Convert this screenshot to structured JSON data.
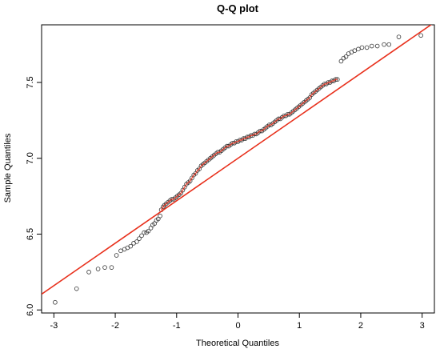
{
  "chart_data": {
    "type": "scatter",
    "title": "Q-Q plot",
    "xlabel": "Theoretical Quantiles",
    "ylabel": "Sample Quantiles",
    "xlim": [
      -3.2,
      3.2
    ],
    "ylim": [
      5.98,
      7.88
    ],
    "x_ticks": [
      -3,
      -2,
      -1,
      0,
      1,
      2,
      3
    ],
    "x_tick_labels": [
      "-3",
      "-2",
      "-1",
      "0",
      "1",
      "2",
      "3"
    ],
    "y_ticks": [
      6.0,
      6.5,
      7.0,
      7.5
    ],
    "y_tick_labels": [
      "6.0",
      "6.5",
      "7.0",
      "7.5"
    ],
    "grid": false,
    "point_color": "#333333",
    "line_color": "#e8301c",
    "reference_line": {
      "slope": 0.28,
      "intercept": 7.0
    },
    "points": [
      [
        -2.98,
        6.05
      ],
      [
        -2.63,
        6.14
      ],
      [
        -2.43,
        6.25
      ],
      [
        -2.28,
        6.27
      ],
      [
        -2.17,
        6.28
      ],
      [
        -2.06,
        6.28
      ],
      [
        -1.98,
        6.36
      ],
      [
        -1.91,
        6.39
      ],
      [
        -1.85,
        6.4
      ],
      [
        -1.8,
        6.41
      ],
      [
        -1.75,
        6.42
      ],
      [
        -1.7,
        6.44
      ],
      [
        -1.65,
        6.45
      ],
      [
        -1.61,
        6.47
      ],
      [
        -1.57,
        6.49
      ],
      [
        -1.53,
        6.51
      ],
      [
        -1.49,
        6.51
      ],
      [
        -1.46,
        6.52
      ],
      [
        -1.42,
        6.54
      ],
      [
        -1.39,
        6.56
      ],
      [
        -1.36,
        6.57
      ],
      [
        -1.33,
        6.59
      ],
      [
        -1.3,
        6.6
      ],
      [
        -1.27,
        6.62
      ],
      [
        -1.25,
        6.66
      ],
      [
        -1.22,
        6.68
      ],
      [
        -1.2,
        6.69
      ],
      [
        -1.17,
        6.7
      ],
      [
        -1.14,
        6.71
      ],
      [
        -1.11,
        6.72
      ],
      [
        -1.08,
        6.73
      ],
      [
        -1.05,
        6.73
      ],
      [
        -1.02,
        6.74
      ],
      [
        -0.99,
        6.75
      ],
      [
        -0.96,
        6.76
      ],
      [
        -0.93,
        6.77
      ],
      [
        -0.9,
        6.79
      ],
      [
        -0.87,
        6.81
      ],
      [
        -0.84,
        6.83
      ],
      [
        -0.81,
        6.84
      ],
      [
        -0.78,
        6.85
      ],
      [
        -0.75,
        6.87
      ],
      [
        -0.72,
        6.89
      ],
      [
        -0.69,
        6.9
      ],
      [
        -0.66,
        6.92
      ],
      [
        -0.63,
        6.93
      ],
      [
        -0.6,
        6.95
      ],
      [
        -0.57,
        6.96
      ],
      [
        -0.54,
        6.97
      ],
      [
        -0.51,
        6.98
      ],
      [
        -0.48,
        6.99
      ],
      [
        -0.45,
        7.0
      ],
      [
        -0.42,
        7.01
      ],
      [
        -0.39,
        7.02
      ],
      [
        -0.36,
        7.03
      ],
      [
        -0.33,
        7.04
      ],
      [
        -0.3,
        7.04
      ],
      [
        -0.27,
        7.05
      ],
      [
        -0.24,
        7.06
      ],
      [
        -0.21,
        7.07
      ],
      [
        -0.18,
        7.08
      ],
      [
        -0.15,
        7.08
      ],
      [
        -0.12,
        7.09
      ],
      [
        -0.09,
        7.1
      ],
      [
        -0.06,
        7.1
      ],
      [
        -0.03,
        7.11
      ],
      [
        0.0,
        7.11
      ],
      [
        0.03,
        7.12
      ],
      [
        0.06,
        7.12
      ],
      [
        0.09,
        7.13
      ],
      [
        0.12,
        7.13
      ],
      [
        0.15,
        7.14
      ],
      [
        0.18,
        7.14
      ],
      [
        0.21,
        7.15
      ],
      [
        0.24,
        7.15
      ],
      [
        0.27,
        7.16
      ],
      [
        0.3,
        7.16
      ],
      [
        0.33,
        7.17
      ],
      [
        0.36,
        7.18
      ],
      [
        0.39,
        7.18
      ],
      [
        0.42,
        7.19
      ],
      [
        0.45,
        7.2
      ],
      [
        0.48,
        7.21
      ],
      [
        0.51,
        7.22
      ],
      [
        0.54,
        7.22
      ],
      [
        0.57,
        7.23
      ],
      [
        0.6,
        7.24
      ],
      [
        0.63,
        7.25
      ],
      [
        0.66,
        7.26
      ],
      [
        0.69,
        7.26
      ],
      [
        0.72,
        7.27
      ],
      [
        0.75,
        7.28
      ],
      [
        0.78,
        7.28
      ],
      [
        0.81,
        7.29
      ],
      [
        0.84,
        7.29
      ],
      [
        0.87,
        7.3
      ],
      [
        0.9,
        7.31
      ],
      [
        0.93,
        7.32
      ],
      [
        0.96,
        7.33
      ],
      [
        0.99,
        7.34
      ],
      [
        1.02,
        7.35
      ],
      [
        1.05,
        7.36
      ],
      [
        1.08,
        7.37
      ],
      [
        1.11,
        7.38
      ],
      [
        1.14,
        7.39
      ],
      [
        1.17,
        7.4
      ],
      [
        1.2,
        7.42
      ],
      [
        1.23,
        7.43
      ],
      [
        1.26,
        7.44
      ],
      [
        1.29,
        7.45
      ],
      [
        1.32,
        7.46
      ],
      [
        1.35,
        7.47
      ],
      [
        1.38,
        7.48
      ],
      [
        1.41,
        7.49
      ],
      [
        1.44,
        7.49
      ],
      [
        1.47,
        7.5
      ],
      [
        1.5,
        7.5
      ],
      [
        1.53,
        7.51
      ],
      [
        1.56,
        7.51
      ],
      [
        1.59,
        7.52
      ],
      [
        1.62,
        7.52
      ],
      [
        1.68,
        7.64
      ],
      [
        1.72,
        7.66
      ],
      [
        1.76,
        7.67
      ],
      [
        1.8,
        7.69
      ],
      [
        1.85,
        7.7
      ],
      [
        1.9,
        7.71
      ],
      [
        1.96,
        7.72
      ],
      [
        2.02,
        7.73
      ],
      [
        2.1,
        7.73
      ],
      [
        2.18,
        7.74
      ],
      [
        2.27,
        7.74
      ],
      [
        2.38,
        7.75
      ],
      [
        2.46,
        7.75
      ],
      [
        2.62,
        7.8
      ],
      [
        2.98,
        7.81
      ]
    ]
  }
}
